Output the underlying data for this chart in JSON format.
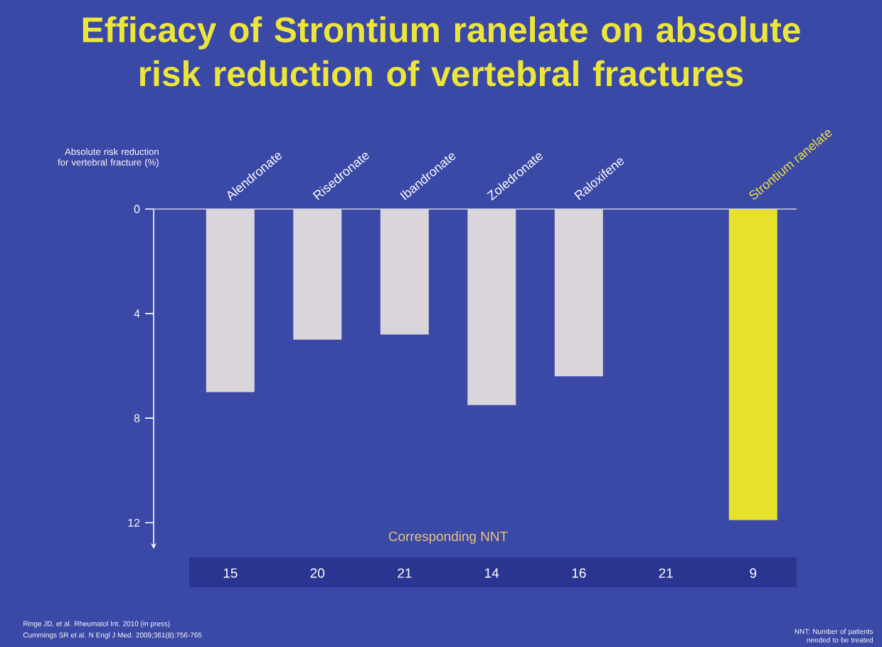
{
  "chart_data": {
    "type": "bar",
    "title": "Efficacy of Strontium ranelate on absolute risk reduction of vertebral fractures",
    "ylabel": "Absolute risk reduction for vertebral fracture (%)",
    "categories": [
      "Alendronate",
      "Risedronate",
      "Ibandronate",
      "Zoledronate",
      "Raloxifene",
      null,
      "Strontium ranelate"
    ],
    "values": [
      7.0,
      5.0,
      4.8,
      7.5,
      6.4,
      null,
      11.9
    ],
    "colors": [
      "#d9d5db",
      "#d9d5db",
      "#d9d5db",
      "#d9d5db",
      "#d9d5db",
      null,
      "#e6e22a"
    ],
    "ylim": [
      13,
      0
    ],
    "yticks": [
      0,
      4,
      8,
      12
    ],
    "annotations": [
      "Corresponding NNT",
      "15",
      "20",
      "21",
      "14",
      "16",
      "21",
      "9",
      "Ringe JD, et al. Rheumatol Int. 2010 (in press)",
      "Cummings SR et al. N Engl J Med. 2009;361(8):756-765",
      "NNT: Number of patients needed to be treated"
    ]
  }
}
